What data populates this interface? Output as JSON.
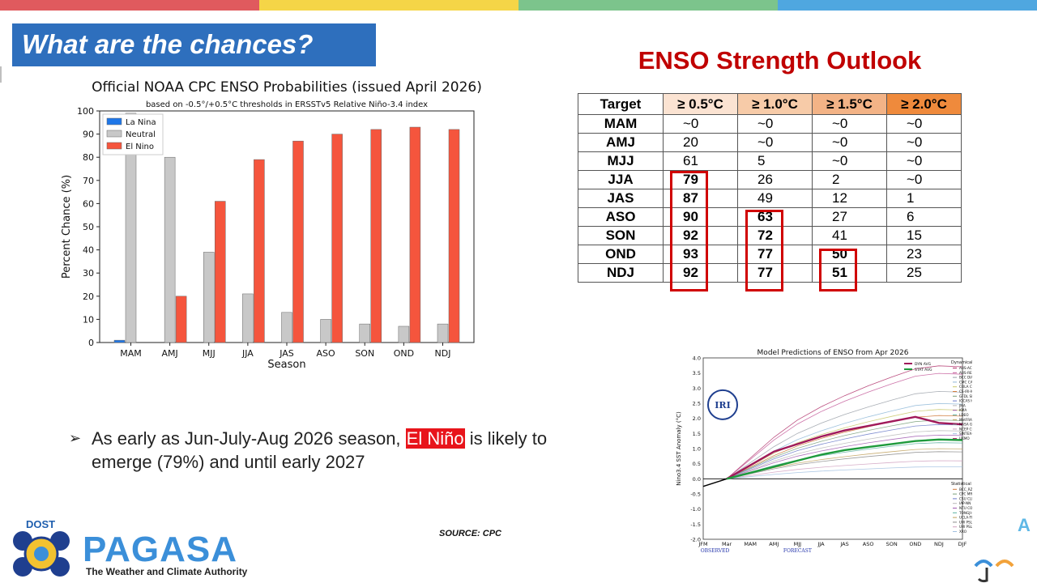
{
  "header": {
    "bar_colors": [
      "#e05a5e",
      "#f5d547",
      "#7cc48c",
      "#4fa7e0"
    ]
  },
  "slide": {
    "title": "What are the chances?",
    "bullet": {
      "prefix": "As early as Jun-July-Aug 2026 season, ",
      "highlight": "El Niño",
      "suffix": " is likely to emerge (79%) and until early 2027"
    },
    "source": "SOURCE: CPC"
  },
  "outlook": {
    "title": "ENSO Strength Outlook",
    "columns": [
      "Target",
      "≥ 0.5°C",
      "≥ 1.0°C",
      "≥ 1.5°C",
      "≥ 2.0°C"
    ],
    "header_colors": [
      "#ffffff",
      "#fbe3d2",
      "#f7cba8",
      "#f3b386",
      "#ef8a3c"
    ],
    "rows": [
      {
        "season": "MAM",
        "v": [
          "~0",
          "~0",
          "~0",
          "~0"
        ]
      },
      {
        "season": "AMJ",
        "v": [
          "20",
          "~0",
          "~0",
          "~0"
        ]
      },
      {
        "season": "MJJ",
        "v": [
          "61",
          "5",
          "~0",
          "~0"
        ]
      },
      {
        "season": "JJA",
        "v": [
          "79",
          "26",
          "2",
          "~0"
        ]
      },
      {
        "season": "JAS",
        "v": [
          "87",
          "49",
          "12",
          "1"
        ]
      },
      {
        "season": "ASO",
        "v": [
          "90",
          "63",
          "27",
          "6"
        ]
      },
      {
        "season": "SON",
        "v": [
          "92",
          "72",
          "41",
          "15"
        ]
      },
      {
        "season": "OND",
        "v": [
          "93",
          "77",
          "50",
          "23"
        ]
      },
      {
        "season": "NDJ",
        "v": [
          "92",
          "77",
          "51",
          "25"
        ]
      }
    ]
  },
  "chart_data": [
    {
      "type": "bar",
      "title": "Official NOAA CPC ENSO Probabilities (issued April 2026)",
      "subtitle": "based on -0.5°/+0.5°C thresholds in ERSSTv5 Relative Niño-3.4 index",
      "xlabel": "Season",
      "ylabel": "Percent Chance (%)",
      "ylim": [
        0,
        100
      ],
      "yticks": [
        0,
        10,
        20,
        30,
        40,
        50,
        60,
        70,
        80,
        90,
        100
      ],
      "categories": [
        "MAM",
        "AMJ",
        "MJJ",
        "JJA",
        "JAS",
        "ASO",
        "SON",
        "OND",
        "NDJ"
      ],
      "legend_position": "top-left",
      "series": [
        {
          "name": "La Nina",
          "color": "#1f77e8",
          "values": [
            1,
            0,
            0,
            0,
            0,
            0,
            0,
            0,
            0
          ]
        },
        {
          "name": "Neutral",
          "color": "#c8c8c8",
          "values": [
            99,
            80,
            39,
            21,
            13,
            10,
            8,
            7,
            8
          ]
        },
        {
          "name": "El Nino",
          "color": "#f5553d",
          "values": [
            0,
            20,
            61,
            79,
            87,
            90,
            92,
            93,
            92
          ]
        }
      ]
    },
    {
      "type": "line",
      "title": "Model Predictions of ENSO from Apr 2026",
      "ylabel": "Nino3.4 SST Anomaly (°C)",
      "ylim": [
        -2.0,
        4.0
      ],
      "yticks": [
        "4.0",
        "3.5",
        "3.0",
        "2.5",
        "2.0",
        "1.5",
        "1.0",
        "0.5",
        "0.0",
        "-0.5",
        "-1.0",
        "-1.5",
        "-2.0"
      ],
      "x_labels": [
        "JFM",
        "Mar",
        "MAM",
        "AMJ",
        "MJJ",
        "JJA",
        "JAS",
        "ASO",
        "SON",
        "OND",
        "NDJ",
        "DJF"
      ],
      "observed_label": "OBSERVED",
      "forecast_label": "FORECAST",
      "logo_text": "IRI",
      "avg_series": [
        {
          "name": "DYN AVG",
          "color": "#a0195a",
          "x": [
            "Mar",
            "AMJ",
            "MJJ",
            "JJA",
            "JAS",
            "ASO",
            "SON",
            "OND",
            "NDJ",
            "DJF"
          ],
          "values": [
            0.0,
            0.9,
            1.15,
            1.4,
            1.6,
            1.75,
            1.9,
            2.05,
            1.85,
            1.8
          ]
        },
        {
          "name": "STAT AVG",
          "color": "#1e9a3c",
          "x": [
            "Mar",
            "AMJ",
            "MJJ",
            "JJA",
            "JAS",
            "ASO",
            "SON",
            "OND",
            "NDJ",
            "DJF"
          ],
          "values": [
            0.0,
            0.4,
            0.6,
            0.8,
            0.95,
            1.05,
            1.15,
            1.25,
            1.3,
            1.28
          ]
        }
      ],
      "observed": {
        "x": [
          "JFM",
          "Mar"
        ],
        "values": [
          -0.25,
          0.0
        ]
      },
      "dynamical_models": [
        "AUS-ACCESS",
        "AUS-RELATIVE",
        "BCC DIAP",
        "CMC CANSIP",
        "COLA CCSM4",
        "CS-IRI-MM",
        "GFDL SPEAR",
        "IOCAS ICM",
        "JMA",
        "KMA",
        "LDEO",
        "MetFRANCE",
        "NASA GMAO",
        "NCEP CFSv2",
        "SINTEX-F",
        "UKMO"
      ],
      "statistical_models": [
        "BCC_RZDM",
        "CPC MRKOV",
        "CSU CLIPR",
        "IAP-NN",
        "NTU CODA",
        "TONGJI-ML",
        "UCLA-TCD",
        "UW PSL-CSLIM",
        "UW PSL-LIM",
        "XRO"
      ],
      "dynamical_title": "Dynamical Models",
      "statistical_title": "Statistical Models"
    }
  ],
  "branding": {
    "dost": "DOST",
    "name": "PAGASA",
    "tagline": "The Weather and Climate Authority"
  }
}
